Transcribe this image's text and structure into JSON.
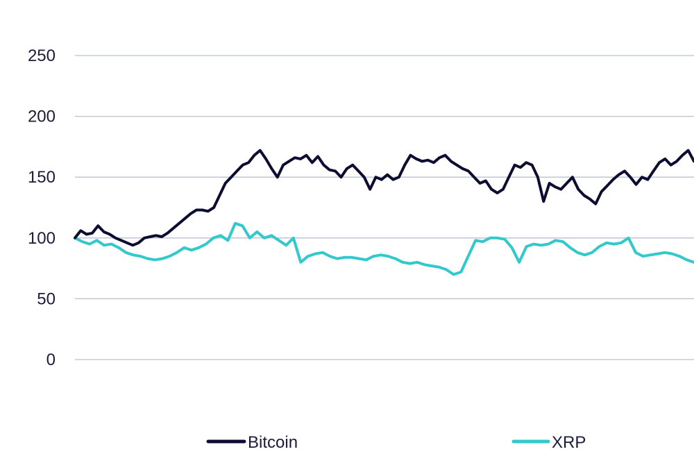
{
  "chart_data": {
    "type": "line",
    "title": "",
    "xlabel": "",
    "ylabel": "",
    "ylim": [
      0,
      250
    ],
    "yticks": [
      "0",
      "50",
      "100",
      "150",
      "200",
      "250"
    ],
    "grid": true,
    "legend_position": "bottom",
    "series": [
      {
        "name": "Bitcoin",
        "color": "#0d0d33",
        "values": [
          100,
          106,
          103,
          104,
          110,
          105,
          103,
          100,
          98,
          96,
          94,
          96,
          100,
          101,
          102,
          101,
          104,
          108,
          112,
          116,
          120,
          123,
          123,
          122,
          125,
          135,
          145,
          150,
          155,
          160,
          162,
          168,
          172,
          165,
          157,
          150,
          160,
          163,
          166,
          165,
          168,
          162,
          167,
          160,
          156,
          155,
          150,
          157,
          160,
          155,
          150,
          140,
          150,
          148,
          152,
          148,
          150,
          160,
          168,
          165,
          163,
          164,
          162,
          166,
          168,
          163,
          160,
          157,
          155,
          150,
          145,
          147,
          140,
          137,
          140,
          150,
          160,
          158,
          162,
          160,
          150,
          130,
          145,
          142,
          140,
          145,
          150,
          140,
          135,
          132,
          128,
          138,
          143,
          148,
          152,
          155,
          150,
          144,
          150,
          148,
          155,
          162,
          165,
          160,
          163,
          168,
          172,
          163
        ]
      },
      {
        "name": "XRP",
        "color": "#33c9cc",
        "values": [
          100,
          97,
          95,
          98,
          94,
          95,
          92,
          88,
          86,
          85,
          83,
          82,
          83,
          85,
          88,
          92,
          90,
          92,
          95,
          100,
          102,
          98,
          112,
          110,
          100,
          105,
          100,
          102,
          98,
          94,
          100,
          80,
          85,
          87,
          88,
          85,
          83,
          84,
          84,
          83,
          82,
          85,
          86,
          85,
          83,
          80,
          79,
          80,
          78,
          77,
          76,
          74,
          70,
          72,
          85,
          98,
          97,
          100,
          100,
          99,
          92,
          80,
          93,
          95,
          94,
          95,
          98,
          97,
          92,
          88,
          86,
          88,
          93,
          96,
          95,
          96,
          100,
          88,
          85,
          86,
          87,
          88,
          87,
          85,
          82,
          80
        ]
      }
    ]
  }
}
